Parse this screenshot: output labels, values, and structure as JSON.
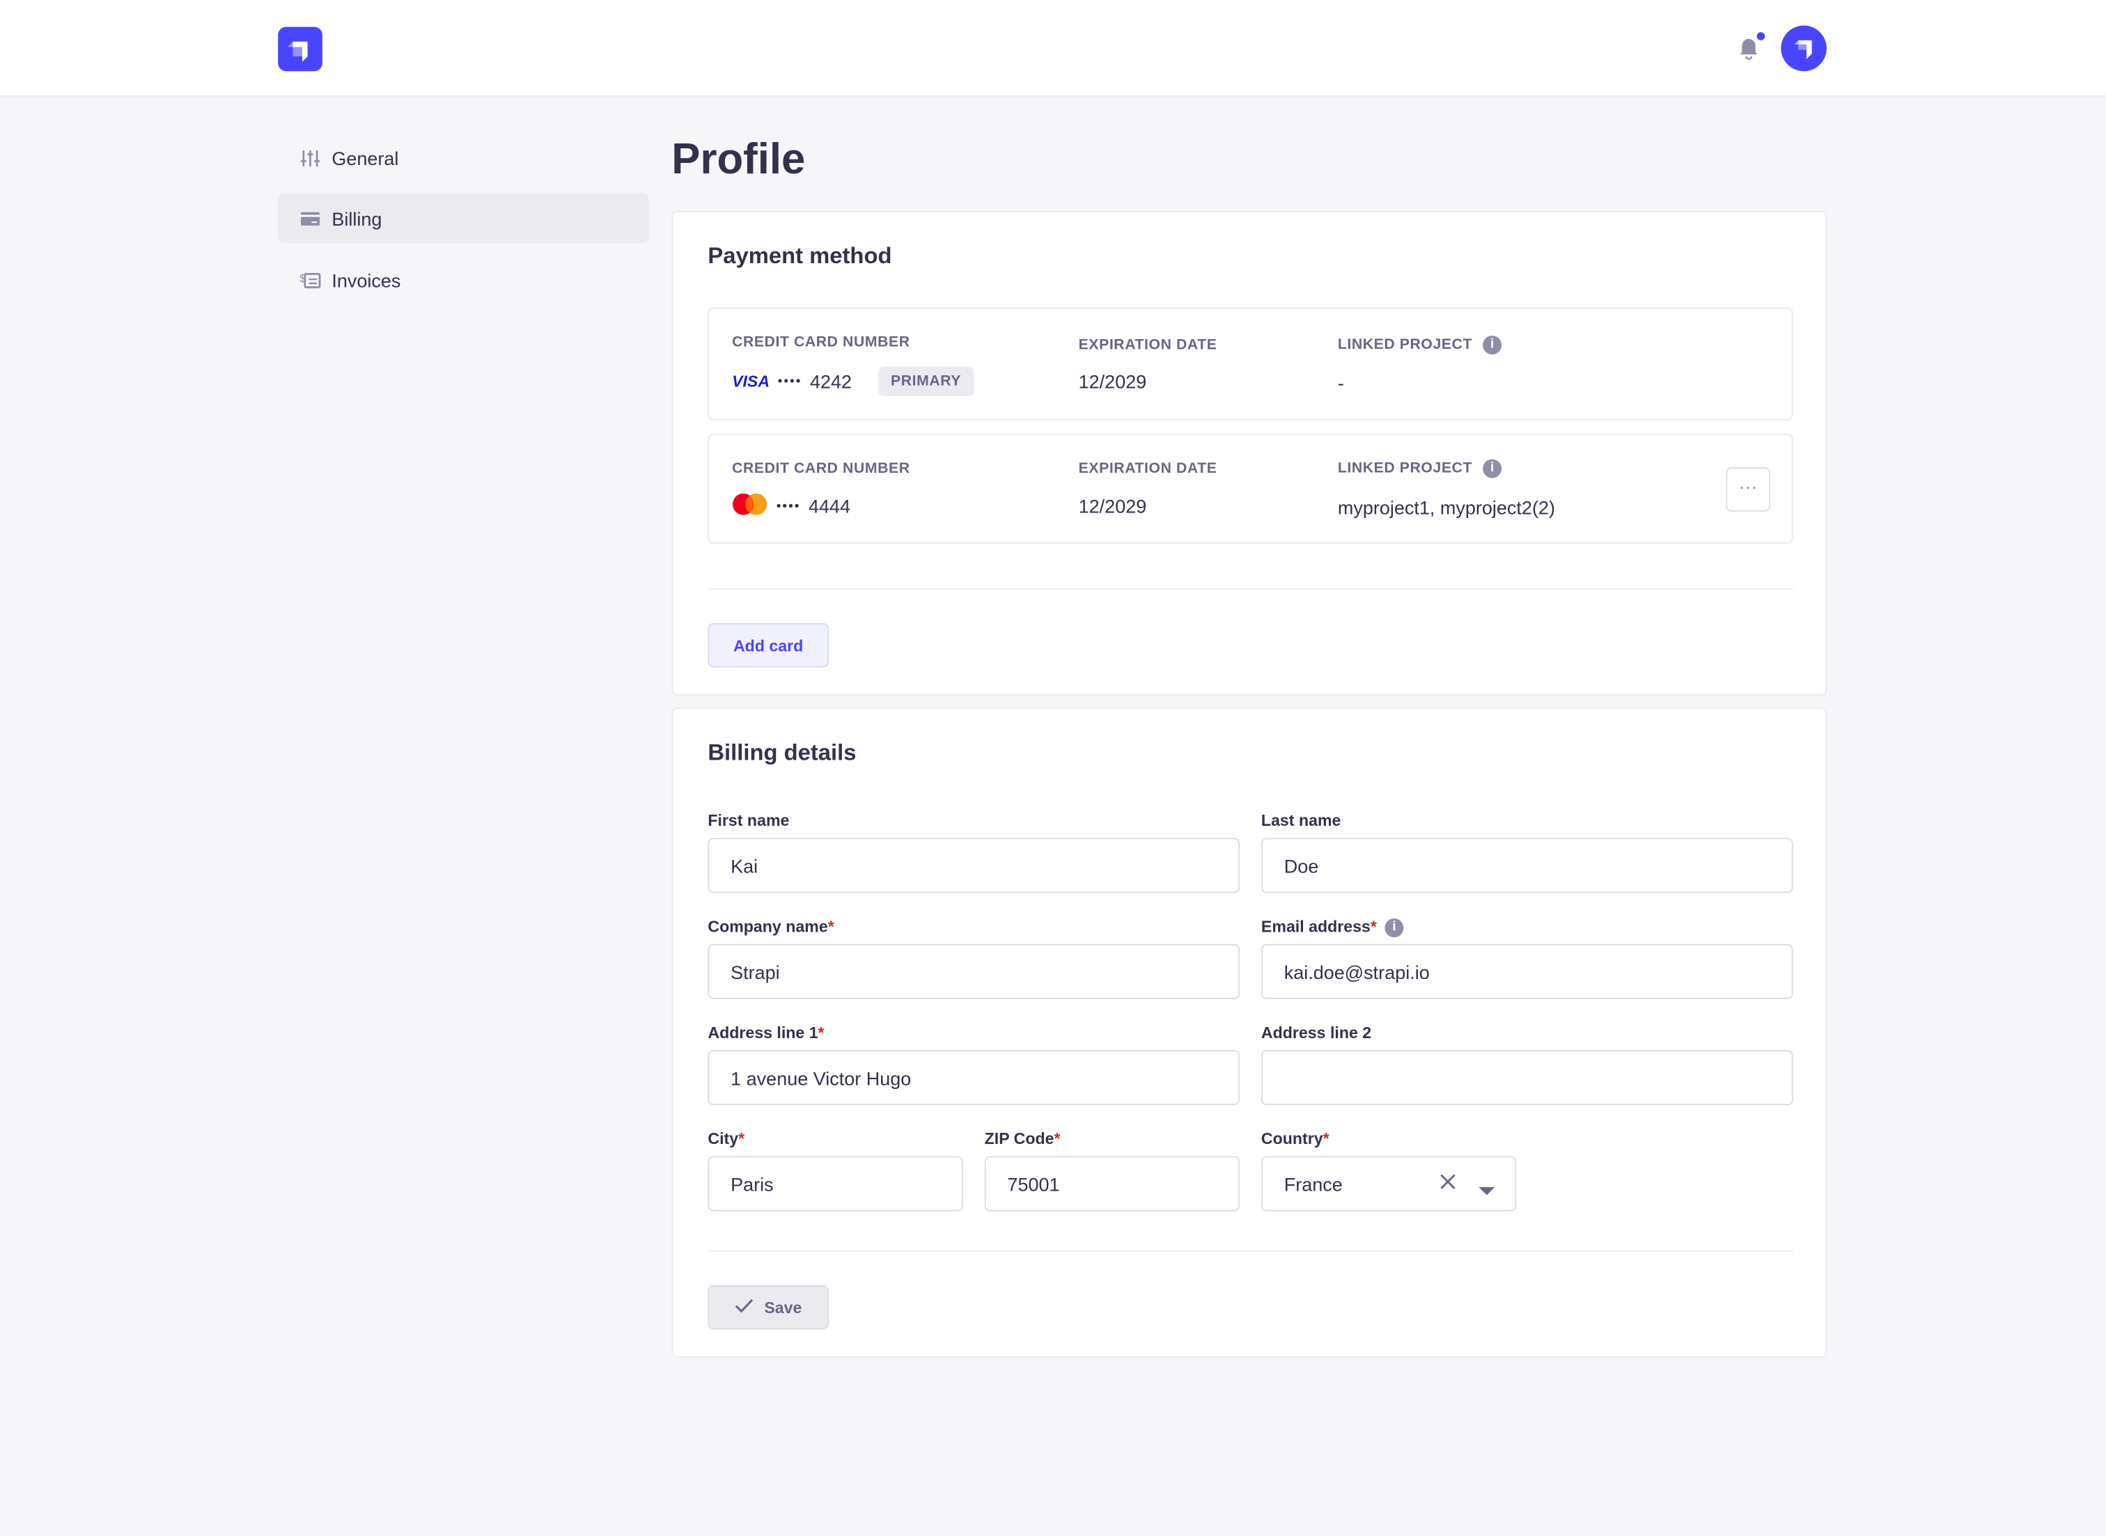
{
  "header": {
    "logo": "strapi-logo",
    "notification_icon": "bell-icon",
    "avatar": "strapi-logo"
  },
  "sidebar": {
    "items": [
      {
        "label": "General",
        "icon": "sliders-icon",
        "active": false
      },
      {
        "label": "Billing",
        "icon": "credit-card-icon",
        "active": true
      },
      {
        "label": "Invoices",
        "icon": "invoice-icon",
        "active": false
      }
    ]
  },
  "page": {
    "title": "Profile"
  },
  "payment": {
    "title": "Payment method",
    "cards": [
      {
        "number_label": "CREDIT CARD NUMBER",
        "brand": "VISA",
        "dots": "••••",
        "last4": "4242",
        "badge": "PRIMARY",
        "exp_label": "EXPIRATION DATE",
        "exp": "12/2029",
        "linked_label": "LINKED PROJECT",
        "linked": "-"
      },
      {
        "number_label": "CREDIT CARD NUMBER",
        "brand": "mastercard",
        "dots": "••••",
        "last4": "4444",
        "exp_label": "EXPIRATION DATE",
        "exp": "12/2029",
        "linked_label": "LINKED PROJECT",
        "linked": "myproject1, myproject2(2)",
        "menu": "···"
      }
    ],
    "add_card": "Add card"
  },
  "billing": {
    "title": "Billing details",
    "fields": {
      "first_name": {
        "label": "First name",
        "value": "Kai"
      },
      "last_name": {
        "label": "Last name",
        "value": "Doe"
      },
      "company": {
        "label": "Company name",
        "value": "Strapi",
        "required": "*"
      },
      "email": {
        "label": "Email address",
        "value": "kai.doe@strapi.io",
        "required": "*"
      },
      "address1": {
        "label": "Address line 1",
        "value": "1 avenue Victor Hugo",
        "required": "*"
      },
      "address2": {
        "label": "Address line 2",
        "value": ""
      },
      "city": {
        "label": "City",
        "value": "Paris",
        "required": "*"
      },
      "zip": {
        "label": "ZIP Code",
        "value": "75001",
        "required": "*"
      },
      "country": {
        "label": "Country",
        "value": "France",
        "required": "*"
      }
    },
    "save": "Save"
  },
  "colors": {
    "primary": "#4945ff",
    "background": "#f6f6f9",
    "required": "#d02b20"
  }
}
